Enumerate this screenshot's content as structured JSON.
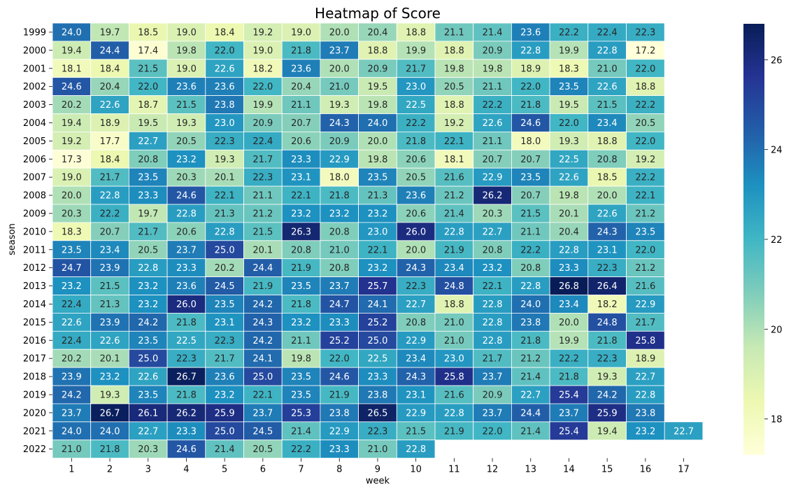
{
  "chart_data": {
    "type": "heatmap",
    "title": "Heatmap of Score",
    "xlabel": "week",
    "ylabel": "season",
    "x": [
      "1",
      "2",
      "3",
      "4",
      "5",
      "6",
      "7",
      "8",
      "9",
      "10",
      "11",
      "12",
      "13",
      "14",
      "15",
      "16",
      "17"
    ],
    "y": [
      "1999",
      "2000",
      "2001",
      "2002",
      "2003",
      "2004",
      "2005",
      "2006",
      "2007",
      "2008",
      "2009",
      "2010",
      "2011",
      "2012",
      "2013",
      "2014",
      "2015",
      "2016",
      "2017",
      "2018",
      "2019",
      "2020",
      "2021",
      "2022"
    ],
    "values": [
      [
        24.0,
        19.7,
        18.5,
        19.0,
        18.4,
        19.2,
        19.0,
        20.0,
        20.4,
        18.8,
        21.1,
        21.4,
        23.6,
        22.2,
        22.4,
        22.3,
        null
      ],
      [
        19.4,
        24.4,
        17.4,
        19.8,
        22.0,
        19.0,
        21.8,
        23.7,
        18.8,
        19.9,
        18.8,
        20.9,
        22.8,
        19.9,
        22.8,
        17.2,
        null
      ],
      [
        18.1,
        18.4,
        21.5,
        19.0,
        22.6,
        18.2,
        23.6,
        20.0,
        20.9,
        21.7,
        19.8,
        19.8,
        18.9,
        18.3,
        21.0,
        22.0,
        null
      ],
      [
        24.6,
        20.4,
        22.0,
        23.6,
        23.6,
        22.0,
        20.4,
        21.0,
        19.5,
        23.0,
        20.5,
        21.1,
        22.0,
        23.5,
        22.6,
        18.8,
        null
      ],
      [
        20.2,
        22.6,
        18.7,
        21.5,
        23.8,
        19.9,
        21.1,
        19.3,
        19.8,
        22.5,
        18.8,
        22.2,
        21.8,
        19.5,
        21.5,
        22.2,
        null
      ],
      [
        19.4,
        18.9,
        19.5,
        19.3,
        23.0,
        20.9,
        20.7,
        24.3,
        24.0,
        22.2,
        19.2,
        22.6,
        24.6,
        22.0,
        23.4,
        20.5,
        null
      ],
      [
        19.2,
        17.7,
        22.7,
        20.5,
        22.3,
        22.4,
        20.6,
        20.9,
        20.0,
        21.8,
        22.1,
        21.1,
        18.0,
        19.3,
        18.8,
        22.0,
        null
      ],
      [
        17.3,
        18.4,
        20.8,
        23.2,
        19.3,
        21.7,
        23.3,
        22.9,
        19.8,
        20.6,
        18.1,
        20.7,
        20.7,
        22.5,
        20.8,
        19.2,
        null
      ],
      [
        19.0,
        21.7,
        23.5,
        20.3,
        20.1,
        22.3,
        23.1,
        18.0,
        23.5,
        20.5,
        21.6,
        22.9,
        23.5,
        22.6,
        18.5,
        22.2,
        null
      ],
      [
        20.0,
        22.8,
        23.3,
        24.6,
        22.1,
        21.1,
        22.1,
        21.8,
        21.3,
        23.6,
        21.2,
        26.2,
        20.7,
        19.8,
        20.0,
        22.1,
        null
      ],
      [
        20.3,
        22.2,
        19.7,
        22.8,
        21.3,
        21.2,
        23.2,
        23.2,
        23.2,
        20.6,
        21.4,
        20.3,
        21.5,
        20.1,
        22.6,
        21.2,
        null
      ],
      [
        18.3,
        20.7,
        21.7,
        20.6,
        22.8,
        21.5,
        26.3,
        20.8,
        23.0,
        26.0,
        22.8,
        22.7,
        21.1,
        20.4,
        24.3,
        23.5,
        null
      ],
      [
        23.5,
        23.4,
        20.5,
        23.7,
        25.0,
        20.1,
        20.8,
        21.0,
        22.1,
        20.0,
        21.9,
        20.8,
        22.2,
        22.8,
        23.1,
        22.0,
        null
      ],
      [
        24.7,
        23.9,
        22.8,
        23.3,
        20.2,
        24.4,
        21.9,
        20.8,
        23.2,
        24.3,
        23.4,
        23.2,
        20.8,
        23.3,
        22.3,
        21.2,
        null
      ],
      [
        23.2,
        21.5,
        23.2,
        23.6,
        24.5,
        21.9,
        23.5,
        23.7,
        25.7,
        22.3,
        24.8,
        22.1,
        22.8,
        26.8,
        26.4,
        21.6,
        null
      ],
      [
        22.4,
        21.3,
        23.2,
        26.0,
        23.5,
        24.2,
        21.8,
        24.7,
        24.1,
        22.7,
        18.8,
        22.8,
        24.0,
        23.4,
        18.2,
        22.9,
        null
      ],
      [
        22.6,
        23.9,
        24.2,
        21.8,
        23.1,
        24.3,
        23.2,
        23.3,
        25.2,
        20.8,
        21.0,
        22.8,
        23.8,
        20.0,
        24.8,
        21.7,
        null
      ],
      [
        22.4,
        22.6,
        23.5,
        22.5,
        22.3,
        24.2,
        21.1,
        25.2,
        25.0,
        22.9,
        21.0,
        22.8,
        21.8,
        19.9,
        21.8,
        25.8,
        null
      ],
      [
        20.2,
        20.1,
        25.0,
        22.3,
        21.7,
        24.1,
        19.8,
        22.0,
        22.5,
        23.4,
        23.0,
        21.7,
        21.2,
        22.2,
        22.3,
        18.9,
        null
      ],
      [
        23.9,
        23.2,
        22.6,
        26.7,
        23.6,
        25.0,
        23.5,
        24.6,
        23.3,
        24.3,
        25.8,
        23.7,
        21.4,
        21.8,
        19.3,
        22.7,
        null
      ],
      [
        24.2,
        19.3,
        23.5,
        21.8,
        23.2,
        22.1,
        23.5,
        21.9,
        23.8,
        23.1,
        21.6,
        20.9,
        22.7,
        25.4,
        24.2,
        22.8,
        null
      ],
      [
        23.7,
        26.7,
        26.1,
        26.2,
        25.9,
        23.7,
        25.3,
        23.8,
        26.5,
        22.9,
        22.8,
        23.7,
        24.4,
        23.7,
        25.9,
        23.8,
        null
      ],
      [
        24.0,
        24.0,
        22.7,
        23.3,
        25.0,
        24.5,
        21.4,
        22.9,
        22.3,
        21.5,
        21.9,
        22.0,
        21.4,
        25.4,
        19.4,
        23.2,
        22.7
      ],
      [
        21.0,
        21.8,
        20.3,
        24.6,
        21.4,
        20.5,
        22.2,
        23.3,
        21.0,
        22.8,
        null,
        null,
        null,
        null,
        null,
        null,
        null
      ]
    ],
    "zlim": [
      17.2,
      26.8
    ],
    "colorbar_ticks": [
      18,
      20,
      22,
      24,
      26
    ],
    "colormap": [
      "#ffffd9",
      "#edf8b1",
      "#c7e9b4",
      "#7fcdbb",
      "#41b6c4",
      "#1d91c0",
      "#225ea8",
      "#253494",
      "#081d58"
    ],
    "grid": false,
    "legend": "colorbar-right"
  }
}
